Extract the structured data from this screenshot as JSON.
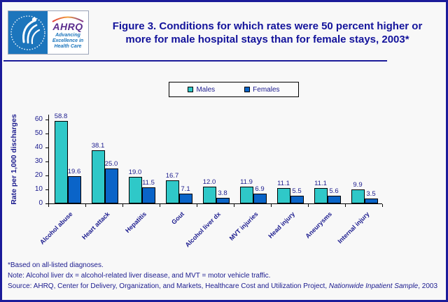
{
  "header": {
    "logo": {
      "ahrq": "AHRQ",
      "tagline": [
        "Advancing",
        "Excellence in",
        "Health Care"
      ]
    },
    "title": "Figure 3. Conditions for which rates were 50 percent higher or more for male hospital stays than for female stays, 2003*"
  },
  "chart_data": {
    "type": "bar",
    "title": "Figure 3. Conditions for which rates were 50 percent higher or more for male hospital stays than for female stays, 2003*",
    "categories": [
      "Alcohol abuse",
      "Heart attack",
      "Hepatitis",
      "Gout",
      "Alcohol liver dx",
      "MVT injuries",
      "Head injury",
      "Aneurysms",
      "Internal injury"
    ],
    "series": [
      {
        "name": "Males",
        "color": "#2fc8c8",
        "values": [
          58.8,
          38.1,
          19.0,
          16.7,
          12.0,
          11.9,
          11.1,
          11.1,
          9.9
        ]
      },
      {
        "name": "Females",
        "color": "#0a64c8",
        "values": [
          19.6,
          25.0,
          11.5,
          7.1,
          3.8,
          6.9,
          5.5,
          5.6,
          3.5
        ]
      }
    ],
    "xlabel": "",
    "ylabel": "Rate per 1,000 discharges",
    "ylim": [
      0,
      60
    ],
    "yticks": [
      0,
      10,
      20,
      30,
      40,
      50,
      60
    ],
    "grid": false,
    "legend_position": "top-center",
    "value_labels_shown": true
  },
  "footnotes": {
    "line1": "*Based on all-listed diagnoses.",
    "line2": "Note: Alcohol liver dx = alcohol-related liver disease, and MVT = motor vehicle traffic.",
    "source_prefix": "Source: AHRQ, Center for Delivery, Organization, and Markets, Healthcare Cost and Utilization Project, ",
    "source_italic": "Nationwide Inpatient Sample",
    "source_suffix": ", 2003"
  },
  "colors": {
    "frame_border": "#1b1b9a",
    "text_navy": "#1b1b8e",
    "males_bar": "#2fc8c8",
    "females_bar": "#0a64c8",
    "hhs_blue": "#1c75bc",
    "ahrq_purple": "#5b2d8e",
    "background": "#f8f8f8"
  }
}
